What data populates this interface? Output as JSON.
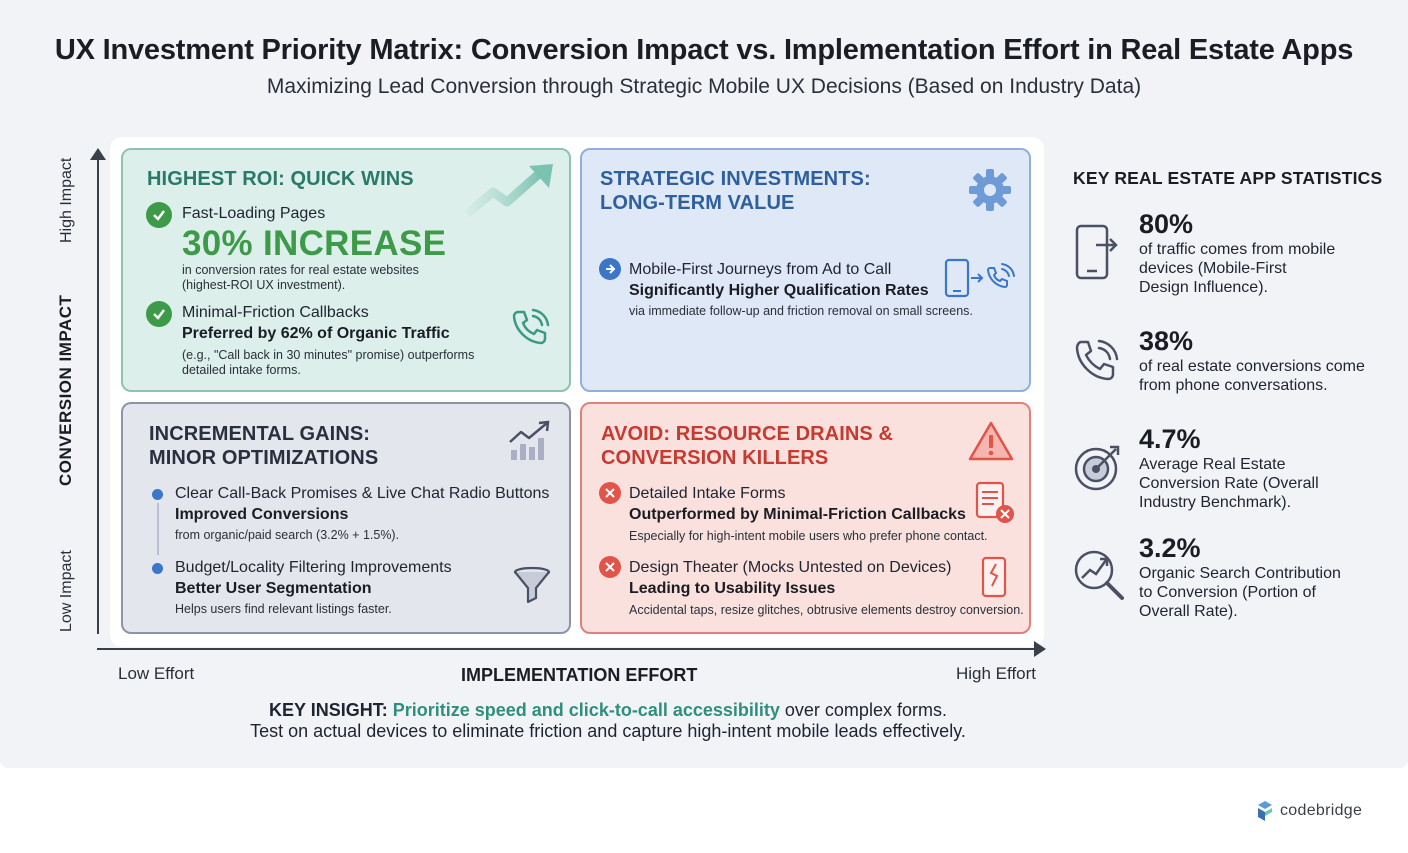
{
  "header": {
    "title": "UX Investment Priority Matrix: Conversion Impact vs. Implementation Effort in Real Estate Apps",
    "subtitle": "Maximizing Lead Conversion through Strategic Mobile UX Decisions (Based on Industry Data)"
  },
  "axes": {
    "y_title": "CONVERSION IMPACT",
    "y_high": "High Impact",
    "y_low": "Low Impact",
    "x_title": "IMPLEMENTATION EFFORT",
    "x_low": "Low Effort",
    "x_high": "High Effort"
  },
  "quadrants": {
    "quick_wins": {
      "heading": "HIGHEST ROI: QUICK WINS",
      "color": "#2b7a69",
      "item1_label": "Fast-Loading Pages",
      "item1_stat": "30% INCREASE",
      "item1_detail_1": "in conversion rates for real estate websites",
      "item1_detail_2": "(highest-ROI UX investment).",
      "item2_label": "Minimal-Friction Callbacks",
      "item2_bold": "Preferred by 62% of Organic Traffic",
      "item2_detail_1": "(e.g., \"Call back in 30 minutes\" promise) outperforms",
      "item2_detail_2": "detailed intake forms.",
      "icons": [
        "check-icon",
        "trend-up-arrow-icon",
        "phone-ringing-icon"
      ]
    },
    "strategic": {
      "heading_1": "STRATEGIC INVESTMENTS:",
      "heading_2": "LONG-TERM VALUE",
      "color": "#2e5f9e",
      "item1_label": "Mobile-First Journeys from Ad to Call",
      "item1_bold": "Significantly Higher Qualification Rates",
      "item1_detail": "via immediate follow-up and friction removal on small screens.",
      "icons": [
        "gear-icon",
        "arrow-right-icon",
        "mobile-to-phone-icon"
      ]
    },
    "incremental": {
      "heading_1": "INCREMENTAL GAINS:",
      "heading_2": "MINOR OPTIMIZATIONS",
      "color": "#2a2f3e",
      "item1_label": "Clear Call-Back Promises & Live Chat Radio Buttons",
      "item1_bold": "Improved Conversions",
      "item1_detail": "from organic/paid search (3.2% + 1.5%).",
      "item2_label": "Budget/Locality Filtering Improvements",
      "item2_bold": "Better User Segmentation",
      "item2_detail": "Helps users find relevant listings faster.",
      "icons": [
        "bar-chart-trend-icon",
        "funnel-icon"
      ]
    },
    "avoid": {
      "heading_1": "AVOID: RESOURCE DRAINS &",
      "heading_2": "CONVERSION KILLERS",
      "color": "#c63a2f",
      "item1_label": "Detailed Intake Forms",
      "item1_bold": "Outperformed by Minimal-Friction Callbacks",
      "item1_detail": "Especially for high-intent mobile users who prefer phone contact.",
      "item2_label": "Design Theater (Mocks Untested on Devices)",
      "item2_bold": "Leading to Usability Issues",
      "item2_detail": "Accidental taps, resize glitches, obtrusive elements destroy conversion.",
      "icons": [
        "warning-triangle-icon",
        "x-icon",
        "form-rejected-icon",
        "broken-phone-icon"
      ]
    }
  },
  "stats": {
    "heading": "KEY REAL ESTATE APP STATISTICS",
    "items": [
      {
        "value": "80%",
        "line1": "of traffic comes from mobile",
        "line2": "devices (Mobile-First",
        "line3": "Design Influence).",
        "icon": "mobile-exit-icon"
      },
      {
        "value": "38%",
        "line1": "of real estate conversions come",
        "line2": "from phone conversations.",
        "line3": "",
        "icon": "phone-icon"
      },
      {
        "value": "4.7%",
        "line1": "Average Real Estate",
        "line2": "Conversion Rate (Overall",
        "line3": "Industry Benchmark).",
        "icon": "target-icon"
      },
      {
        "value": "3.2%",
        "line1": "Organic Search Contribution",
        "line2": "to Conversion (Portion of",
        "line3": "Overall Rate).",
        "icon": "search-trend-icon"
      }
    ]
  },
  "insight": {
    "label": "KEY INSIGHT:",
    "highlight": "Prioritize speed and click-to-call accessibility",
    "rest": " over complex forms.",
    "line2": "Test on actual devices to eliminate friction and capture high-intent mobile leads effectively."
  },
  "brand": {
    "name": "codebridge"
  }
}
